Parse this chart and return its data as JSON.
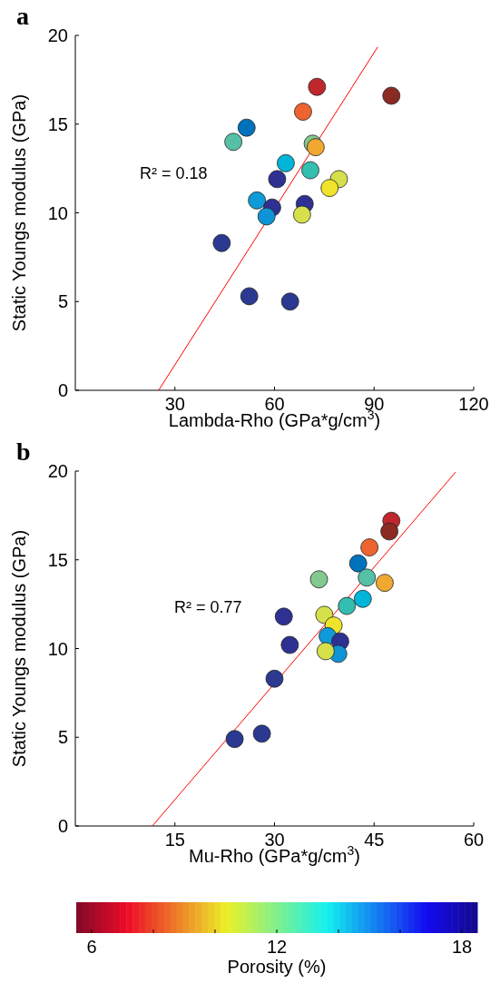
{
  "chart_data": [
    {
      "type": "scatter",
      "title": "a",
      "xlabel": "Lambda-Rho (GPa*g/cm$^{3}$)",
      "ylabel": "Static Youngs modulus (GPa)",
      "xlim": [
        0,
        120
      ],
      "xticks": [
        30,
        60,
        90,
        120
      ],
      "ylim": [
        0,
        20
      ],
      "yticks": [
        0,
        5,
        10,
        15,
        20
      ],
      "grid": false,
      "marker": "circle",
      "annotations": [
        "R² = 0.18"
      ],
      "series": [
        {
          "x": [
            72.8,
            95.2,
            68.6,
            51.6,
            47.6,
            71.5,
            72.4,
            63.4,
            70.8,
            79.4,
            60.8,
            76.6,
            54.7,
            59.3,
            69.1,
            57.6,
            68.3,
            44.1,
            52.4,
            64.7
          ],
          "values": [
            17.1,
            16.6,
            15.7,
            14.8,
            14.0,
            13.9,
            13.7,
            12.8,
            12.4,
            11.9,
            11.9,
            11.4,
            10.7,
            10.3,
            10.5,
            9.8,
            9.9,
            8.3,
            5.3,
            5.0
          ],
          "colors": [
            "#c0272d",
            "#8b2a22",
            "#ee6431",
            "#0072bc",
            "#55c0a6",
            "#82c990",
            "#f0a830",
            "#00b5d8",
            "#33beb0",
            "#d6e04b",
            "#2e3192",
            "#f0e32c",
            "#0f9ad8",
            "#2e3192",
            "#2e3192",
            "#0e94d6",
            "#d6e04b",
            "#2b3990",
            "#2b3990",
            "#2b3990"
          ]
        },
        {
          "type": "line",
          "marker": "none",
          "color": "#ff0000",
          "x": [
            25.1,
            91.1
          ],
          "values": [
            0,
            19.35
          ]
        }
      ]
    },
    {
      "type": "scatter",
      "title": "b",
      "xlabel": "Mu-Rho (GPa*g/cm$^{3}$)",
      "ylabel": "Static Youngs modulus (GPa)",
      "xlim": [
        0,
        60
      ],
      "xticks": [
        15,
        30,
        45,
        60
      ],
      "ylim": [
        0,
        20
      ],
      "yticks": [
        0,
        5,
        10,
        15,
        20
      ],
      "grid": false,
      "marker": "circle",
      "clim": [
        5.5,
        18.5
      ],
      "cticks": [
        6,
        {
          "value": 8,
          "label": null
        },
        {
          "value": 10,
          "label": null
        },
        12,
        {
          "value": 14,
          "label": null
        },
        {
          "value": 16,
          "label": null
        },
        18
      ],
      "clabel": "Porosity (%)",
      "annotations": [
        "R² = 0.77"
      ],
      "series": [
        {
          "x": [
            47.6,
            47.3,
            44.3,
            42.6,
            43.9,
            36.7,
            46.6,
            43.3,
            40.9,
            37.5,
            31.4,
            38.9,
            38.0,
            32.3,
            39.9,
            39.6,
            37.7,
            30.0,
            28.1,
            24.0
          ],
          "values": [
            17.2,
            16.6,
            15.7,
            14.8,
            14.0,
            13.9,
            13.7,
            12.8,
            12.4,
            11.9,
            11.8,
            11.3,
            10.7,
            10.2,
            10.4,
            9.7,
            9.85,
            8.3,
            5.2,
            4.9
          ],
          "colors": [
            "#c0272d",
            "#8b2a22",
            "#ee6431",
            "#0072bc",
            "#55c0a6",
            "#82c990",
            "#f0a830",
            "#00b5d8",
            "#33beb0",
            "#d6e04b",
            "#2e3192",
            "#f0e32c",
            "#0f9ad8",
            "#2e3192",
            "#2e3192",
            "#0e94d6",
            "#d6e04b",
            "#2b3990",
            "#2b3990",
            "#2b3990"
          ]
        },
        {
          "type": "line",
          "marker": "none",
          "color": "#ff0000",
          "x": [
            11.6,
            57.3
          ],
          "values": [
            0,
            19.95
          ]
        }
      ]
    }
  ]
}
